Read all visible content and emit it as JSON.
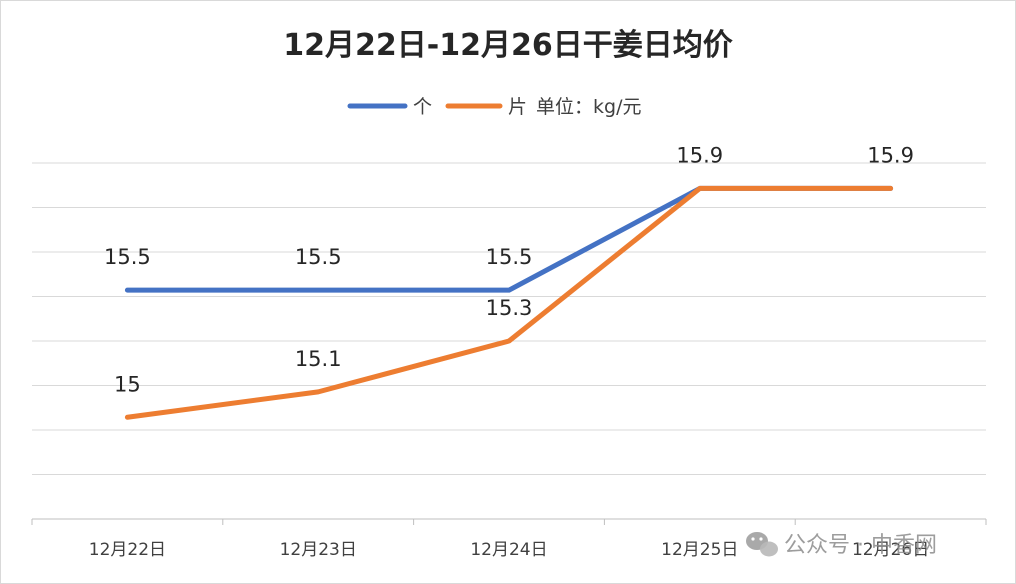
{
  "chart_data": {
    "type": "line",
    "title": "12月22日-12月26日干姜日均价",
    "unit_label": "单位：kg/元",
    "categories": [
      "12月22日",
      "12月23日",
      "12月24日",
      "12月25日",
      "12月26日"
    ],
    "series": [
      {
        "name": "个",
        "color": "#4472c4",
        "values": [
          15.5,
          15.5,
          15.5,
          15.9,
          15.9
        ],
        "labels": [
          "15.5",
          "15.5",
          "15.5",
          "",
          ""
        ]
      },
      {
        "name": "片",
        "color": "#ed7d31",
        "values": [
          15.0,
          15.1,
          15.3,
          15.9,
          15.9
        ],
        "labels": [
          "15",
          "15.1",
          "15.3",
          "15.9",
          "15.9"
        ]
      }
    ],
    "ylim": [
      14.6,
      16.0
    ],
    "grid": true,
    "legend_position": "top"
  },
  "watermark": {
    "text": "公众号 · 中香网",
    "icon": "wechat-icon"
  }
}
